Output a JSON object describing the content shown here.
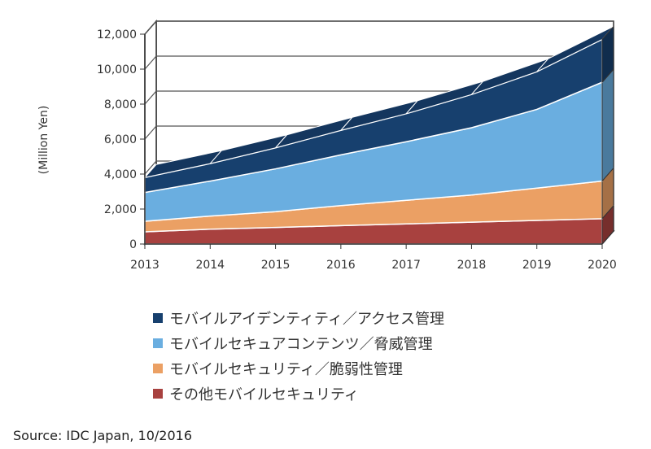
{
  "chart_data": {
    "type": "area",
    "stacked": true,
    "three_d": true,
    "ylabel": "(Million Yen)",
    "ylim": [
      0,
      12000
    ],
    "yticks": [
      0,
      2000,
      4000,
      6000,
      8000,
      10000,
      12000
    ],
    "ytick_labels": [
      "0",
      "2,000",
      "4,000",
      "6,000",
      "8,000",
      "10,000",
      "12,000"
    ],
    "categories": [
      "2013",
      "2014",
      "2015",
      "2016",
      "2017",
      "2018",
      "2019",
      "2020"
    ],
    "grid": true,
    "legend_position": "bottom",
    "series": [
      {
        "name": "その他モバイルセキュリティ",
        "color": "#a8413f",
        "values": [
          700,
          850,
          950,
          1050,
          1150,
          1250,
          1350,
          1450
        ]
      },
      {
        "name": "モバイルセキュリティ／脆弱性管理",
        "color": "#eba064",
        "values": [
          600,
          750,
          900,
          1150,
          1350,
          1550,
          1850,
          2150
        ]
      },
      {
        "name": "モバイルセキュアコンテンツ／脅威管理",
        "color": "#6aaee0",
        "values": [
          1650,
          2000,
          2450,
          2900,
          3350,
          3850,
          4500,
          5650
        ]
      },
      {
        "name": "モバイルアイデンティティ／アクセス管理",
        "color": "#17406e",
        "values": [
          850,
          1000,
          1200,
          1400,
          1600,
          1900,
          2150,
          2450
        ]
      }
    ]
  },
  "legend": {
    "items": [
      {
        "label": "モバイルアイデンティティ／アクセス管理",
        "color": "#17406e"
      },
      {
        "label": "モバイルセキュアコンテンツ／脅威管理",
        "color": "#6aaee0"
      },
      {
        "label": "モバイルセキュリティ／脆弱性管理",
        "color": "#eba064"
      },
      {
        "label": "その他モバイルセキュリティ",
        "color": "#a8413f"
      }
    ]
  },
  "source": "Source: IDC Japan, 10/2016"
}
